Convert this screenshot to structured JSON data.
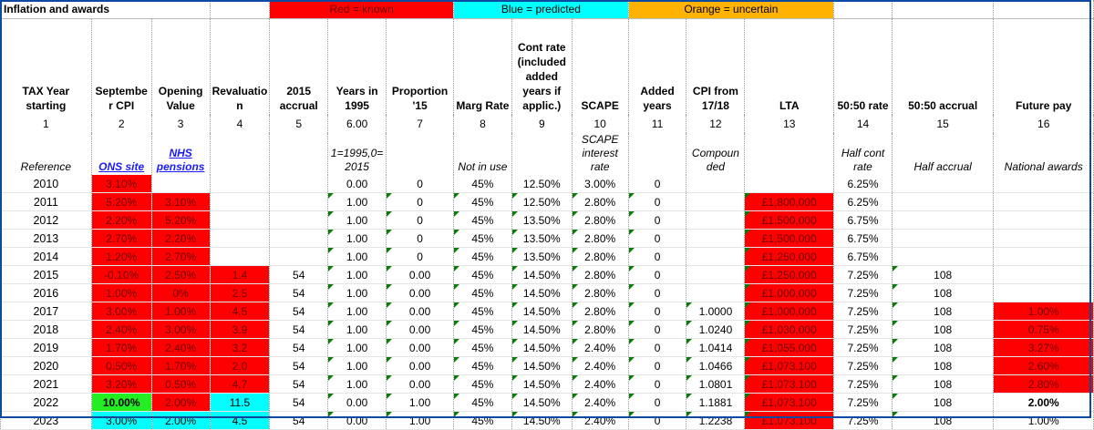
{
  "sheet": {
    "title": "Inflation and awards",
    "legend": {
      "red": "Red = known",
      "blue": "Blue = predicted",
      "orange": "Orange = uncertain"
    },
    "columns": [
      {
        "header": "TAX Year starting",
        "num": "1",
        "ref": "Reference"
      },
      {
        "header": "Septembe r CPI",
        "num": "2",
        "ref": "ONS site"
      },
      {
        "header": "Opening Value",
        "num": "3",
        "ref": "NHS pensions"
      },
      {
        "header": "Revaluatio n",
        "num": "4",
        "ref": ""
      },
      {
        "header": "2015 accrual",
        "num": "5",
        "ref": ""
      },
      {
        "header": "Years in 1995",
        "num": "6.00",
        "ref": "1=1995,0= 2015"
      },
      {
        "header": "Proportion '15",
        "num": "7",
        "ref": ""
      },
      {
        "header": "Marg Rate",
        "num": "8",
        "ref": "Not in use"
      },
      {
        "header": "Cont rate (included added years if applic.)",
        "num": "9",
        "ref": ""
      },
      {
        "header": "SCAPE",
        "num": "10",
        "ref": "SCAPE interest rate"
      },
      {
        "header": "Added years",
        "num": "11",
        "ref": ""
      },
      {
        "header": "CPI from 17/18",
        "num": "12",
        "ref": "Compoun ded"
      },
      {
        "header": "LTA",
        "num": "13",
        "ref": ""
      },
      {
        "header": "50:50 rate",
        "num": "14",
        "ref": "Half cont rate"
      },
      {
        "header": "50:50 accrual",
        "num": "15",
        "ref": "Half accrual"
      },
      {
        "header": "Future pay",
        "num": "16",
        "ref": "National awards"
      }
    ],
    "rows": [
      [
        "2010",
        "3.10%",
        "",
        "",
        "",
        "0.00",
        "0",
        "45%",
        "12.50%",
        "3.00%",
        "0",
        "",
        "",
        "6.25%",
        "",
        ""
      ],
      [
        "2011",
        "5.20%",
        "3.10%",
        "",
        "",
        "1.00",
        "0",
        "45%",
        "12.50%",
        "2.80%",
        "0",
        "",
        "£1,800,000",
        "6.25%",
        "",
        ""
      ],
      [
        "2012",
        "2.20%",
        "5.20%",
        "",
        "",
        "1.00",
        "0",
        "45%",
        "13.50%",
        "2.80%",
        "0",
        "",
        "£1,500,000",
        "6.75%",
        "",
        ""
      ],
      [
        "2013",
        "2.70%",
        "2.20%",
        "",
        "",
        "1.00",
        "0",
        "45%",
        "13.50%",
        "2.80%",
        "0",
        "",
        "£1,500,000",
        "6.75%",
        "",
        ""
      ],
      [
        "2014",
        "1.20%",
        "2.70%",
        "",
        "",
        "1.00",
        "0",
        "45%",
        "13.50%",
        "2.80%",
        "0",
        "",
        "£1,250,000",
        "6.75%",
        "",
        ""
      ],
      [
        "2015",
        "-0.10%",
        "2.50%",
        "1.4",
        "54",
        "1.00",
        "0.00",
        "45%",
        "14.50%",
        "2.80%",
        "0",
        "",
        "£1,250,000",
        "7.25%",
        "108",
        ""
      ],
      [
        "2016",
        "1.00%",
        "0%",
        "2.5",
        "54",
        "1.00",
        "0.00",
        "45%",
        "14.50%",
        "2.80%",
        "0",
        "",
        "£1,000,000",
        "7.25%",
        "108",
        ""
      ],
      [
        "2017",
        "3.00%",
        "1.00%",
        "4.5",
        "54",
        "1.00",
        "0.00",
        "45%",
        "14.50%",
        "2.80%",
        "0",
        "1.0000",
        "£1,000,000",
        "7.25%",
        "108",
        "1.00%"
      ],
      [
        "2018",
        "2.40%",
        "3.00%",
        "3.9",
        "54",
        "1.00",
        "0.00",
        "45%",
        "14.50%",
        "2.80%",
        "0",
        "1.0240",
        "£1,030,000",
        "7.25%",
        "108",
        "0.75%"
      ],
      [
        "2019",
        "1.70%",
        "2.40%",
        "3.2",
        "54",
        "1.00",
        "0.00",
        "45%",
        "14.50%",
        "2.40%",
        "0",
        "1.0414",
        "£1,055,000",
        "7.25%",
        "108",
        "3.27%"
      ],
      [
        "2020",
        "0.50%",
        "1.70%",
        "2.0",
        "54",
        "1.00",
        "0.00",
        "45%",
        "14.50%",
        "2.40%",
        "0",
        "1.0466",
        "£1,073,100",
        "7.25%",
        "108",
        "2.60%"
      ],
      [
        "2021",
        "3.20%",
        "0.50%",
        "4.7",
        "54",
        "1.00",
        "0.00",
        "45%",
        "14.50%",
        "2.40%",
        "0",
        "1.0801",
        "£1,073,100",
        "7.25%",
        "108",
        "2.80%"
      ],
      [
        "2022",
        "10.00%",
        "2.00%",
        "11.5",
        "54",
        "0.00",
        "1.00",
        "45%",
        "14.50%",
        "2.40%",
        "0",
        "1.1881",
        "£1,073,100",
        "7.25%",
        "108",
        "2.00%"
      ],
      [
        "2023",
        "3.00%",
        "2.00%",
        "4.5",
        "54",
        "0.00",
        "1.00",
        "45%",
        "14.50%",
        "2.40%",
        "0",
        "1.2238",
        "£1,073,100",
        "7.25%",
        "108",
        "1.00%"
      ]
    ],
    "colors": {
      "known": "#ff0000",
      "predicted": "#00ffff",
      "uncertain": "#ffb000",
      "highlight": "#ffff00"
    }
  }
}
